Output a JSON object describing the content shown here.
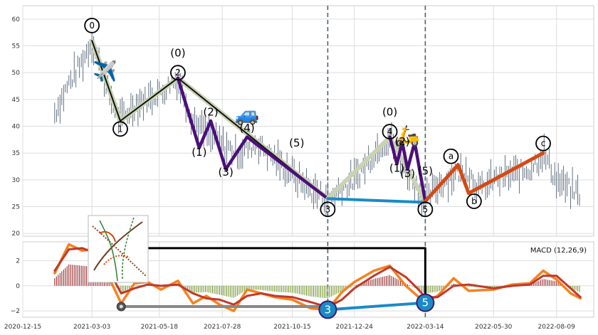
{
  "chart_data": [
    {
      "type": "line",
      "panel": "price",
      "description_style": "OHLC-style price bars with Elliott wave overlay",
      "ylim": [
        19.5,
        62.5
      ],
      "y_ticks": [
        "20",
        "25",
        "30",
        "35",
        "40",
        "45",
        "50",
        "55",
        "60"
      ],
      "x_ticks": [
        "2020-12-15",
        "2021-03-03",
        "2021-05-18",
        "2021-07-28",
        "2021-10-15",
        "2021-12-24",
        "2022-03-14",
        "2022-05-30",
        "2022-08-09"
      ],
      "x_range": [
        "2020-12-15",
        "2022-09-20"
      ],
      "grid": true,
      "price_path": [
        [
          "2021-01-20",
          42.5
        ],
        [
          "2021-02-05",
          48
        ],
        [
          "2021-02-20",
          52
        ],
        [
          "2021-03-03",
          56
        ],
        [
          "2021-03-18",
          48
        ],
        [
          "2021-04-04",
          41
        ],
        [
          "2021-04-20",
          44
        ],
        [
          "2021-05-10",
          45.5
        ],
        [
          "2021-05-25",
          47
        ],
        [
          "2021-06-08",
          49
        ],
        [
          "2021-06-25",
          41
        ],
        [
          "2021-07-15",
          38
        ],
        [
          "2021-07-28",
          36.5
        ],
        [
          "2021-08-15",
          35
        ],
        [
          "2021-09-05",
          37
        ],
        [
          "2021-09-25",
          34
        ],
        [
          "2021-10-15",
          31
        ],
        [
          "2021-11-05",
          28
        ],
        [
          "2021-11-24",
          26.5
        ],
        [
          "2021-12-10",
          28.5
        ],
        [
          "2021-12-24",
          30
        ],
        [
          "2022-01-20",
          36
        ],
        [
          "2022-02-02",
          38
        ],
        [
          "2022-02-20",
          32
        ],
        [
          "2022-03-14",
          26
        ],
        [
          "2022-03-28",
          29
        ],
        [
          "2022-04-15",
          31
        ],
        [
          "2022-04-30",
          32
        ],
        [
          "2022-05-15",
          28
        ],
        [
          "2022-05-30",
          30
        ],
        [
          "2022-06-20",
          31
        ],
        [
          "2022-07-10",
          32
        ],
        [
          "2022-07-25",
          35
        ],
        [
          "2022-08-09",
          30
        ],
        [
          "2022-08-25",
          28
        ],
        [
          "2022-09-05",
          27.5
        ]
      ],
      "series": [
        {
          "name": "",
          "color": "#111111",
          "points": [
            [
              "2021-03-03",
              56
            ],
            [
              "2021-04-04",
              41
            ],
            [
              "2021-06-08",
              49
            ],
            [
              "2021-11-24",
              26.5
            ]
          ]
        },
        {
          "name": "",
          "color": "#4b0f7a",
          "points": [
            [
              "2021-06-08",
              49
            ],
            [
              "2021-07-02",
              36
            ],
            [
              "2021-07-15",
              41
            ],
            [
              "2021-08-01",
              32
            ],
            [
              "2021-08-25",
              38
            ],
            [
              "2021-11-24",
              26.5
            ]
          ]
        },
        {
          "name": "",
          "color": "#c9d3b3",
          "points": [
            [
              "2021-11-24",
              26.5
            ],
            [
              "2022-02-02",
              38
            ],
            [
              "2022-03-14",
              26
            ]
          ]
        },
        {
          "name": "",
          "color": "#4b0f7a",
          "points": [
            [
              "2022-02-02",
              38
            ],
            [
              "2022-02-10",
              33
            ],
            [
              "2022-02-16",
              37
            ],
            [
              "2022-02-22",
              32
            ],
            [
              "2022-03-02",
              37
            ],
            [
              "2022-03-14",
              26
            ]
          ]
        },
        {
          "name": "",
          "color": "#1a8ac8",
          "points": [
            [
              "2021-11-24",
              26.5
            ],
            [
              "2022-03-14",
              25.8
            ]
          ]
        },
        {
          "name": "",
          "color": "#d44a14",
          "points": [
            [
              "2022-03-14",
              26
            ],
            [
              "2022-04-20",
              32.8
            ],
            [
              "2022-05-02",
              27.5
            ],
            [
              "2022-07-25",
              35
            ]
          ]
        }
      ],
      "wave_labels": [
        {
          "text": "0",
          "at": [
            "2021-03-03",
            58.8
          ],
          "circled": true
        },
        {
          "text": "1",
          "at": [
            "2021-04-04",
            39.5
          ],
          "circled": true
        },
        {
          "text": "2",
          "at": [
            "2021-06-08",
            50
          ],
          "circled": true
        },
        {
          "text": "(0)",
          "at": [
            "2021-06-08",
            53
          ],
          "circled": false
        },
        {
          "text": "(1)",
          "at": [
            "2021-07-02",
            34.5
          ],
          "circled": false
        },
        {
          "text": "(2)",
          "at": [
            "2021-07-15",
            42
          ],
          "circled": false
        },
        {
          "text": "(3)",
          "at": [
            "2021-08-01",
            30.8
          ],
          "circled": false
        },
        {
          "text": "(4)",
          "at": [
            "2021-08-25",
            39
          ],
          "circled": false
        },
        {
          "text": "(5)",
          "at": [
            "2021-10-20",
            36.2
          ],
          "circled": false
        },
        {
          "text": "3",
          "at": [
            "2021-11-24",
            24.5
          ],
          "circled": true
        },
        {
          "text": "(0)",
          "at": [
            "2022-02-02",
            42
          ],
          "circled": false
        },
        {
          "text": "4",
          "at": [
            "2022-02-02",
            39
          ],
          "circled": true
        },
        {
          "text": "(1)",
          "at": [
            "2022-02-10",
            31.5
          ],
          "circled": false
        },
        {
          "text": "(2)",
          "at": [
            "2022-02-16",
            36.5
          ],
          "circled": false
        },
        {
          "text": "(3)",
          "at": [
            "2022-02-22",
            30.5
          ],
          "circled": false
        },
        {
          "text": "(5)",
          "at": [
            "2022-03-14",
            31
          ],
          "circled": false
        },
        {
          "text": "5",
          "at": [
            "2022-03-14",
            24.5
          ],
          "circled": true
        },
        {
          "text": "a",
          "at": [
            "2022-04-12",
            34.4
          ],
          "circled": true
        },
        {
          "text": "b",
          "at": [
            "2022-05-08",
            26
          ],
          "circled": true
        },
        {
          "text": "c",
          "at": [
            "2022-07-25",
            36.8
          ],
          "circled": true
        }
      ],
      "vertical_lines": [
        "2021-11-24",
        "2022-03-14"
      ],
      "emojis": [
        {
          "icon": "airplane",
          "char": "✈️",
          "at": [
            "2021-03-18",
            49
          ]
        },
        {
          "icon": "car",
          "char": "🚙",
          "at": [
            "2021-08-25",
            41
          ]
        },
        {
          "icon": "scooter",
          "char": "🛵",
          "at": [
            "2022-02-22",
            37
          ]
        }
      ]
    },
    {
      "type": "line",
      "panel": "macd",
      "legend": "MACD (12,26,9)",
      "ylim": [
        -2.5,
        3.5
      ],
      "y_ticks": [
        "−2",
        "0",
        "2"
      ],
      "series": [
        {
          "name": "",
          "color": "#f5821f",
          "points": [
            [
              "2021-01-20",
              1
            ],
            [
              "2021-02-05",
              3.3
            ],
            [
              "2021-02-20",
              2.8
            ],
            [
              "2021-03-03",
              2.9
            ],
            [
              "2021-03-20",
              1
            ],
            [
              "2021-04-05",
              -1.4
            ],
            [
              "2021-04-20",
              0.2
            ],
            [
              "2021-05-05",
              0.3
            ],
            [
              "2021-05-20",
              -0.3
            ],
            [
              "2021-06-08",
              0.4
            ],
            [
              "2021-06-25",
              -1.4
            ],
            [
              "2021-07-10",
              -0.8
            ],
            [
              "2021-07-25",
              -1.5
            ],
            [
              "2021-08-10",
              -2
            ],
            [
              "2021-08-25",
              -0.3
            ],
            [
              "2021-09-10",
              -0.6
            ],
            [
              "2021-09-25",
              -0.9
            ],
            [
              "2021-10-15",
              -1.1
            ],
            [
              "2021-11-05",
              -1.8
            ],
            [
              "2021-11-24",
              -1.9
            ],
            [
              "2021-12-10",
              -0.5
            ],
            [
              "2021-12-24",
              0.3
            ],
            [
              "2022-01-15",
              1.2
            ],
            [
              "2022-02-02",
              1.6
            ],
            [
              "2022-02-20",
              0
            ],
            [
              "2022-03-05",
              -0.8
            ],
            [
              "2022-03-14",
              -1.3
            ],
            [
              "2022-03-28",
              -0.8
            ],
            [
              "2022-04-15",
              0.6
            ],
            [
              "2022-05-02",
              -0.4
            ],
            [
              "2022-05-30",
              -0.3
            ],
            [
              "2022-06-20",
              0.1
            ],
            [
              "2022-07-10",
              0.2
            ],
            [
              "2022-07-25",
              1.2
            ],
            [
              "2022-08-09",
              0.5
            ],
            [
              "2022-08-25",
              -0.6
            ],
            [
              "2022-09-05",
              -1
            ]
          ]
        },
        {
          "name": "",
          "color": "#c0392b",
          "points": [
            [
              "2021-01-20",
              1.2
            ],
            [
              "2021-02-05",
              2.9
            ],
            [
              "2021-02-20",
              3
            ],
            [
              "2021-03-03",
              2.7
            ],
            [
              "2021-03-20",
              1.5
            ],
            [
              "2021-04-05",
              -0.6
            ],
            [
              "2021-04-20",
              -0.2
            ],
            [
              "2021-05-05",
              0.1
            ],
            [
              "2021-05-20",
              0
            ],
            [
              "2021-06-08",
              0.1
            ],
            [
              "2021-06-25",
              -0.6
            ],
            [
              "2021-07-10",
              -1
            ],
            [
              "2021-07-25",
              -1.1
            ],
            [
              "2021-08-10",
              -1.5
            ],
            [
              "2021-08-25",
              -0.8
            ],
            [
              "2021-09-10",
              -0.6
            ],
            [
              "2021-09-25",
              -0.8
            ],
            [
              "2021-10-15",
              -0.9
            ],
            [
              "2021-11-05",
              -1.3
            ],
            [
              "2021-11-24",
              -1.7
            ],
            [
              "2021-12-10",
              -1.1
            ],
            [
              "2021-12-24",
              -0.2
            ],
            [
              "2022-01-15",
              0.8
            ],
            [
              "2022-02-02",
              1.5
            ],
            [
              "2022-02-20",
              0.7
            ],
            [
              "2022-03-05",
              -0.2
            ],
            [
              "2022-03-14",
              -0.9
            ],
            [
              "2022-03-28",
              -0.9
            ],
            [
              "2022-04-15",
              0
            ],
            [
              "2022-05-02",
              0.1
            ],
            [
              "2022-05-30",
              -0.2
            ],
            [
              "2022-06-20",
              0
            ],
            [
              "2022-07-10",
              0.1
            ],
            [
              "2022-07-25",
              0.8
            ],
            [
              "2022-08-09",
              0.8
            ],
            [
              "2022-08-25",
              -0.2
            ],
            [
              "2022-09-05",
              -0.9
            ]
          ]
        },
        {
          "name": "",
          "color": "#888888",
          "points": [
            [
              "2021-04-05",
              -1.65
            ],
            [
              "2021-11-24",
              -1.65
            ]
          ]
        },
        {
          "name": "",
          "color": "#1a8ac8",
          "points": [
            [
              "2021-11-24",
              -1.9
            ],
            [
              "2022-03-14",
              -1.35
            ]
          ]
        },
        {
          "name": "",
          "color": "#000000",
          "points": [
            [
              "2021-04-05",
              3
            ],
            [
              "2022-03-14",
              3
            ],
            [
              "2022-03-14",
              -1.35
            ]
          ]
        }
      ],
      "markers": [
        {
          "text": "",
          "at": [
            "2021-04-05",
            -1.65
          ],
          "style": "dot"
        },
        {
          "text": "3",
          "at": [
            "2021-11-24",
            -1.9
          ],
          "style": "circle"
        },
        {
          "text": "5",
          "at": [
            "2022-03-14",
            -1.35
          ],
          "style": "circle"
        }
      ]
    }
  ]
}
